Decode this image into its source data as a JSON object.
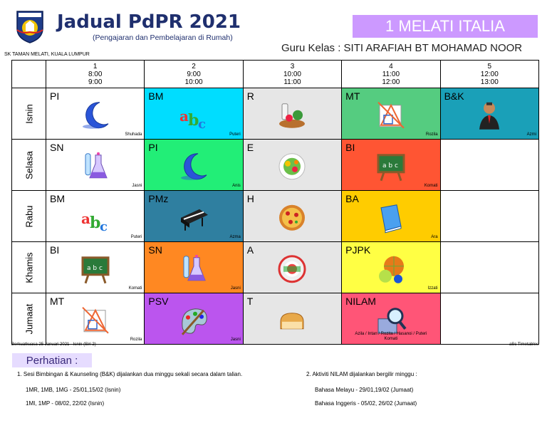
{
  "header": {
    "title": "Jadual PdPR 2021",
    "subtitle": "(Pengajaran dan Pembelajaran di Rumah)",
    "class_name": "1 MELATI ITALIA",
    "teacher": "Guru Kelas : SITI ARAFIAH BT MOHAMAD NOOR",
    "school": "SK TAMAN MELATI, KUALA LUMPUR"
  },
  "periods": [
    {
      "num": "1",
      "start": "8:00",
      "end": "9:00"
    },
    {
      "num": "2",
      "start": "9:00",
      "end": "10:00"
    },
    {
      "num": "3",
      "start": "10:00",
      "end": "11:00"
    },
    {
      "num": "4",
      "start": "11:00",
      "end": "12:00"
    },
    {
      "num": "5",
      "start": "12:00",
      "end": "13:00"
    }
  ],
  "days": [
    {
      "name": "Isnin",
      "cells": [
        {
          "code": "PI",
          "teacher": "Shuhada",
          "color": "#ffffff",
          "icon": "moon-icon"
        },
        {
          "code": "BM",
          "teacher": "Puteri",
          "color": "#00ddff",
          "icon": "abc-letters-icon"
        },
        {
          "code": "R",
          "teacher": "",
          "color": "#e6e6e6",
          "icon": "groceries-icon"
        },
        {
          "code": "MT",
          "teacher": "Rozila",
          "color": "#55cc80",
          "icon": "geometry-icon"
        },
        {
          "code": "B&K",
          "teacher": "Azmi",
          "color": "#1aa0b8",
          "icon": "counselor-icon"
        }
      ]
    },
    {
      "name": "Selasa",
      "cells": [
        {
          "code": "SN",
          "teacher": "Jasni",
          "color": "#ffffff",
          "icon": "lab-flask-icon"
        },
        {
          "code": "PI",
          "teacher": "Anis",
          "color": "#22ee77",
          "icon": "moon-icon"
        },
        {
          "code": "E",
          "teacher": "",
          "color": "#e6e6e6",
          "icon": "healthy-plate-icon"
        },
        {
          "code": "BI",
          "teacher": "Komati",
          "color": "#ff5533",
          "icon": "chalkboard-icon"
        },
        {
          "code": "",
          "teacher": "",
          "color": "#ffffff",
          "icon": ""
        }
      ]
    },
    {
      "name": "Rabu",
      "cells": [
        {
          "code": "BM",
          "teacher": "Puteri",
          "color": "#ffffff",
          "icon": "abc-letters-icon"
        },
        {
          "code": "PMz",
          "teacher": "Azma",
          "color": "#2f7fa0",
          "icon": "piano-icon"
        },
        {
          "code": "H",
          "teacher": "",
          "color": "#e6e6e6",
          "icon": "pizza-icon"
        },
        {
          "code": "BA",
          "teacher": "Ara",
          "color": "#ffcc00",
          "icon": "book-icon"
        },
        {
          "code": "",
          "teacher": "",
          "color": "#ffffff",
          "icon": ""
        }
      ]
    },
    {
      "name": "Khamis",
      "cells": [
        {
          "code": "BI",
          "teacher": "Komati",
          "color": "#ffffff",
          "icon": "chalkboard-icon"
        },
        {
          "code": "SN",
          "teacher": "Jasni",
          "color": "#ff8822",
          "icon": "lab-flask-icon"
        },
        {
          "code": "A",
          "teacher": "",
          "color": "#e6e6e6",
          "icon": "sushi-icon"
        },
        {
          "code": "PJPK",
          "teacher": "Izzati",
          "color": "#ffff44",
          "icon": "sports-balls-icon"
        },
        {
          "code": "",
          "teacher": "",
          "color": "#ffffff",
          "icon": ""
        }
      ]
    },
    {
      "name": "Jumaat",
      "cells": [
        {
          "code": "MT",
          "teacher": "Rozila",
          "color": "#ffffff",
          "icon": "geometry-icon"
        },
        {
          "code": "PSV",
          "teacher": "Jasni",
          "color": "#bb55ee",
          "icon": "paint-palette-icon"
        },
        {
          "code": "T",
          "teacher": "",
          "color": "#e6e6e6",
          "icon": "bread-icon"
        },
        {
          "code": "NILAM",
          "teacher": "Azila / Intan / Rozita / Hasanoi / Puteri\nKomati",
          "color": "#ff5577",
          "icon": "magnifier-book-icon"
        },
        {
          "code": "",
          "teacher": "",
          "color": "#ffffff",
          "icon": ""
        }
      ]
    }
  ],
  "footer": {
    "effective": "Berkuatkuasa 25 Januari 2021 - Isnin (Siri 2)",
    "generator": "aSc Timetables",
    "notice_title": "Perhatian :",
    "notes_left": [
      "1. Sesi Bimbingan & Kaunseling (B&K) dijalankan dua minggu sekali secara dalam talian.",
      "1MR, 1MB, 1MG - 25/01,15/02 (Isnin)",
      "1MI, 1MP - 08/02, 22/02 (Isnin)"
    ],
    "notes_right": [
      "2. Aktiviti NILAM dijalankan bergilir minggu :",
      "Bahasa Melayu - 29/01,19/02 (Jumaat)",
      "Bahasa Inggeris - 05/02, 26/02 (Jumaat)"
    ]
  }
}
